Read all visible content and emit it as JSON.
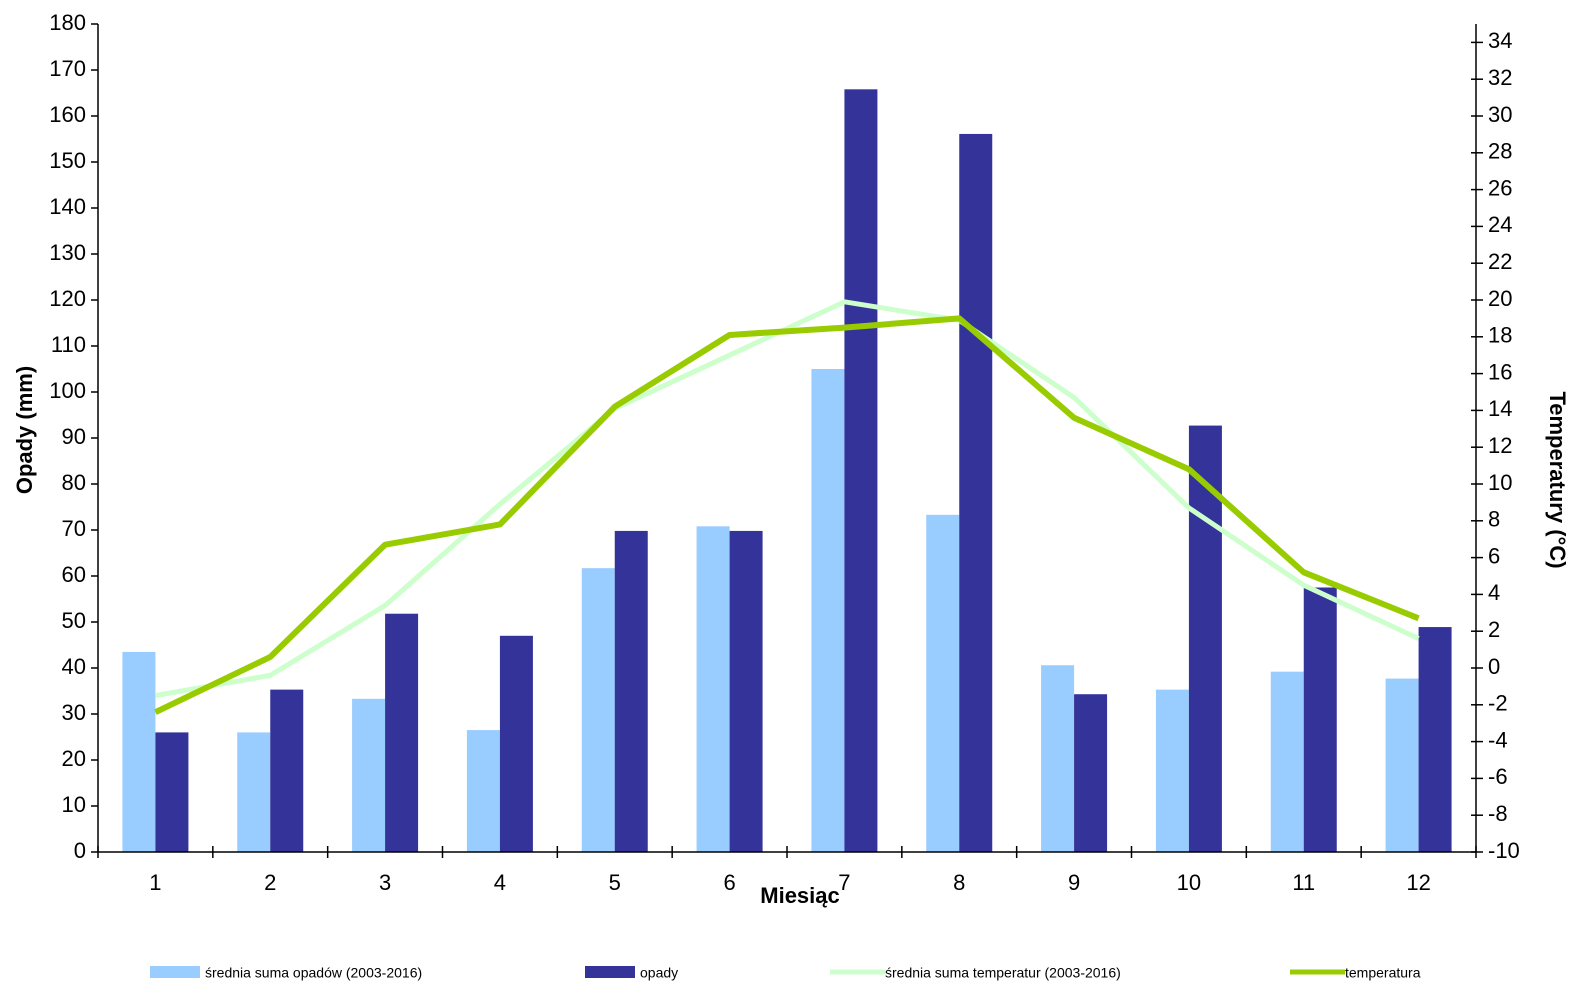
{
  "chart_data": {
    "type": "bar-line",
    "x_label": "Miesiąc",
    "y_label": "Opady (mm)",
    "y2_label": "Temperatury (°C)",
    "categories": [
      "1",
      "2",
      "3",
      "4",
      "5",
      "6",
      "7",
      "8",
      "9",
      "10",
      "11",
      "12"
    ],
    "series": [
      {
        "name": "średnia suma opadów (2003-2016)",
        "type": "bar",
        "color": "#99ccff",
        "values": [
          43.5,
          26,
          33.3,
          26.5,
          61.7,
          70.8,
          105,
          73.3,
          40.6,
          35.3,
          39.2,
          37.7
        ]
      },
      {
        "name": "opady",
        "type": "bar",
        "color": "#333399",
        "values": [
          26,
          35.3,
          51.8,
          47,
          69.8,
          69.8,
          165.8,
          156.1,
          34.3,
          92.7,
          57.5,
          48.9
        ]
      },
      {
        "name": "średnia suma temperatur (2003-2016)",
        "type": "line",
        "axis": "y2",
        "color": "#ccffcc",
        "values": [
          -1.5,
          -0.4,
          3.4,
          8.9,
          14.1,
          17.0,
          19.9,
          18.9,
          14.7,
          8.7,
          4.5,
          1.6
        ]
      },
      {
        "name": "temperatura",
        "type": "line",
        "axis": "y2",
        "color": "#99cc00",
        "values": [
          -2.4,
          0.6,
          6.7,
          7.8,
          14.2,
          18.1,
          18.5,
          19.0,
          13.6,
          10.8,
          5.2,
          2.7
        ]
      }
    ],
    "ylim": [
      0,
      180
    ],
    "yticks": [
      0,
      10,
      20,
      30,
      40,
      50,
      60,
      70,
      80,
      90,
      100,
      110,
      120,
      130,
      140,
      150,
      160,
      170,
      180
    ],
    "y2lim": [
      -10,
      35
    ],
    "y2ticks": [
      -10,
      -8,
      -6,
      -4,
      -2,
      0,
      2,
      4,
      6,
      8,
      10,
      12,
      14,
      16,
      18,
      20,
      22,
      24,
      26,
      28,
      30,
      32,
      34
    ],
    "legend": "bottom"
  }
}
